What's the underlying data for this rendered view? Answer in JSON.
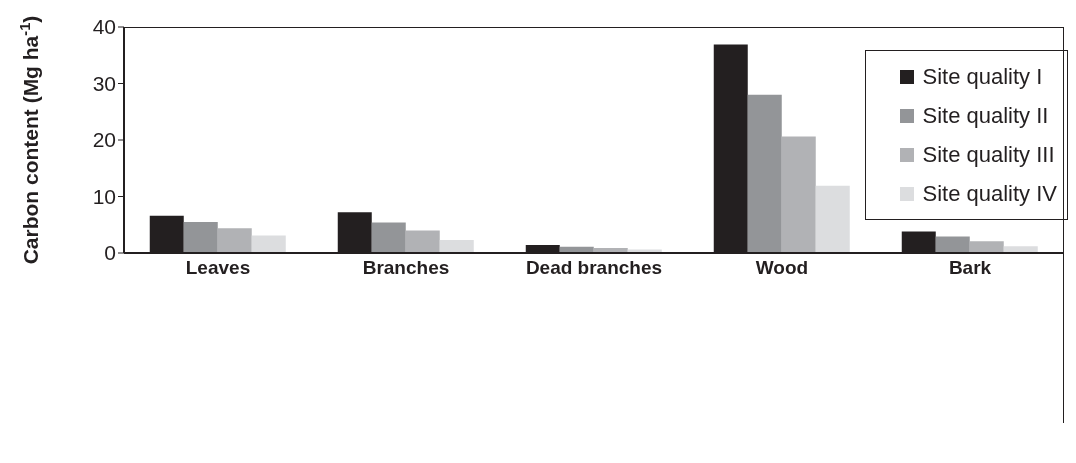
{
  "chart_data": {
    "type": "bar",
    "ylabel": "Carbon content (Mg ha$^{-1}$)",
    "categories": [
      "Leaves",
      "Branches",
      "Dead branches",
      "Wood",
      "Bark"
    ],
    "series": [
      {
        "name": "Site quality I",
        "color": "#231f20",
        "values": [
          6.6,
          7.2,
          1.4,
          36.9,
          3.8
        ]
      },
      {
        "name": "Site quality II",
        "color": "#939598",
        "values": [
          5.5,
          5.4,
          1.1,
          28.0,
          2.9
        ]
      },
      {
        "name": "Site quality III",
        "color": "#b1b2b5",
        "values": [
          4.4,
          4.0,
          0.9,
          20.6,
          2.1
        ]
      },
      {
        "name": "Site quality IV",
        "color": "#dcdddf",
        "values": [
          3.1,
          2.3,
          0.6,
          11.9,
          1.2
        ]
      }
    ],
    "ylim": [
      0,
      40
    ],
    "yticks": [
      0,
      10,
      20,
      30,
      40
    ],
    "legend": "top right"
  }
}
